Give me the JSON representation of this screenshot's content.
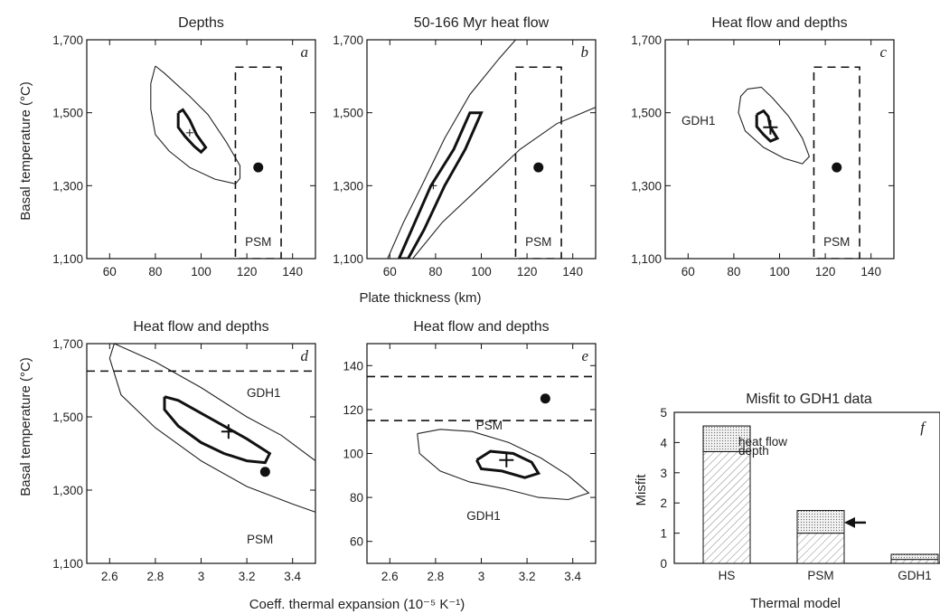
{
  "figure_labels": {
    "ylabel_top": "Basal temperature (°C)",
    "ylabel_bottom": "Basal temperature (°C)",
    "xlabel_top": "Plate thickness (km)",
    "xlabel_bottom_left": "Coeff. thermal expansion (10⁻⁵ K⁻¹)",
    "ylabel_f": "Misfit",
    "xlabel_f": "Thermal model"
  },
  "chart_data": [
    {
      "panel": "a",
      "type": "scatter",
      "title": "Depths",
      "xlim": [
        50,
        150
      ],
      "ylim": [
        1100,
        1700
      ],
      "xticks": [
        60,
        80,
        100,
        120,
        140
      ],
      "yticks": [
        1100,
        1300,
        1500,
        1700
      ],
      "ytick_labels": [
        "1,100",
        "1,300",
        "1,500",
        "1,700"
      ],
      "best_fit_marker": {
        "x": 95,
        "y": 1445
      },
      "psm_point": {
        "x": 125,
        "y": 1350
      },
      "psm_box": {
        "x": [
          115,
          135
        ],
        "y": [
          1100,
          1625
        ]
      },
      "psm_label": "PSM",
      "inner_contour": [
        [
          90,
          1500
        ],
        [
          92,
          1508
        ],
        [
          95,
          1480
        ],
        [
          98,
          1440
        ],
        [
          102,
          1405
        ],
        [
          100,
          1392
        ],
        [
          97,
          1408
        ],
        [
          93,
          1435
        ],
        [
          90,
          1460
        ],
        [
          90,
          1500
        ]
      ],
      "outer_contour": [
        [
          80,
          1628
        ],
        [
          84,
          1608
        ],
        [
          95,
          1545
        ],
        [
          103,
          1495
        ],
        [
          111,
          1420
        ],
        [
          117,
          1355
        ],
        [
          117,
          1320
        ],
        [
          115,
          1305
        ],
        [
          106,
          1318
        ],
        [
          95,
          1350
        ],
        [
          86,
          1395
        ],
        [
          80,
          1440
        ],
        [
          78,
          1510
        ],
        [
          78,
          1580
        ],
        [
          80,
          1628
        ]
      ]
    },
    {
      "panel": "b",
      "type": "scatter",
      "title": "50-166 Myr heat flow",
      "xlim": [
        50,
        150
      ],
      "ylim": [
        1100,
        1700
      ],
      "xticks": [
        60,
        80,
        100,
        120,
        140
      ],
      "yticks": [
        1100,
        1300,
        1500,
        1700
      ],
      "ytick_labels": [
        "1,100",
        "1,300",
        "1,500",
        "1,700"
      ],
      "best_fit_marker": {
        "x": 79,
        "y": 1300
      },
      "psm_point": {
        "x": 125,
        "y": 1350
      },
      "psm_box": {
        "x": [
          115,
          135
        ],
        "y": [
          1100,
          1625
        ]
      },
      "psm_label": "PSM",
      "thick_band": [
        [
          64,
          1100
        ],
        [
          71,
          1200
        ],
        [
          78,
          1300
        ],
        [
          88,
          1400
        ],
        [
          95,
          1500
        ],
        [
          100,
          1500
        ],
        [
          93,
          1400
        ],
        [
          84,
          1300
        ],
        [
          75,
          1180
        ],
        [
          68,
          1100
        ],
        [
          64,
          1100
        ]
      ],
      "upper_curve": [
        [
          59,
          1100
        ],
        [
          66,
          1200
        ],
        [
          74,
          1300
        ],
        [
          84,
          1430
        ],
        [
          95,
          1550
        ],
        [
          108,
          1650
        ],
        [
          115,
          1700
        ]
      ],
      "lower_curve": [
        [
          70,
          1100
        ],
        [
          83,
          1200
        ],
        [
          100,
          1300
        ],
        [
          117,
          1400
        ],
        [
          133,
          1470
        ],
        [
          150,
          1515
        ]
      ]
    },
    {
      "panel": "c",
      "type": "scatter",
      "title": "Heat flow and depths",
      "xlim": [
        50,
        150
      ],
      "ylim": [
        1100,
        1700
      ],
      "xticks": [
        60,
        80,
        100,
        120,
        140
      ],
      "yticks": [
        1100,
        1300,
        1500,
        1700
      ],
      "ytick_labels": [
        "1,100",
        "1,300",
        "1,500",
        "1,700"
      ],
      "best_fit_marker": {
        "x": 96,
        "y": 1460
      },
      "psm_point": {
        "x": 125,
        "y": 1350
      },
      "psm_box": {
        "x": [
          115,
          135
        ],
        "y": [
          1100,
          1625
        ]
      },
      "psm_label": "PSM",
      "gdh1_label": "GDH1",
      "inner_contour": [
        [
          90,
          1495
        ],
        [
          93,
          1505
        ],
        [
          95,
          1490
        ],
        [
          96,
          1460
        ],
        [
          99,
          1430
        ],
        [
          96,
          1422
        ],
        [
          93,
          1440
        ],
        [
          90,
          1462
        ],
        [
          90,
          1495
        ]
      ],
      "outer_contour": [
        [
          86,
          1565
        ],
        [
          92,
          1570
        ],
        [
          97,
          1540
        ],
        [
          104,
          1490
        ],
        [
          110,
          1430
        ],
        [
          113,
          1380
        ],
        [
          110,
          1360
        ],
        [
          102,
          1375
        ],
        [
          93,
          1405
        ],
        [
          85,
          1450
        ],
        [
          82,
          1500
        ],
        [
          83,
          1545
        ],
        [
          86,
          1565
        ]
      ]
    },
    {
      "panel": "d",
      "type": "scatter",
      "title": "Heat flow and depths",
      "xlim": [
        2.5,
        3.5
      ],
      "ylim": [
        1100,
        1700
      ],
      "xticks": [
        2.6,
        2.8,
        3.0,
        3.2,
        3.4
      ],
      "yticks": [
        1100,
        1300,
        1500,
        1700
      ],
      "ytick_labels": [
        "1,100",
        "1,300",
        "1,500",
        "1,700"
      ],
      "best_fit_marker": {
        "x": 3.12,
        "y": 1460
      },
      "psm_point": {
        "x": 3.28,
        "y": 1350
      },
      "gdh1_hline": 1625,
      "gdh1_label": "GDH1",
      "psm_label": "PSM",
      "inner_contour": [
        [
          2.84,
          1555
        ],
        [
          2.9,
          1545
        ],
        [
          3.0,
          1510
        ],
        [
          3.1,
          1475
        ],
        [
          3.2,
          1440
        ],
        [
          3.3,
          1400
        ],
        [
          3.28,
          1375
        ],
        [
          3.2,
          1380
        ],
        [
          3.1,
          1400
        ],
        [
          3.0,
          1430
        ],
        [
          2.9,
          1475
        ],
        [
          2.84,
          1520
        ],
        [
          2.84,
          1555
        ]
      ],
      "outer_contour": [
        [
          2.62,
          1700
        ],
        [
          2.8,
          1650
        ],
        [
          3.0,
          1580
        ],
        [
          3.2,
          1500
        ],
        [
          3.35,
          1450
        ],
        [
          3.5,
          1380
        ],
        [
          3.5,
          1240
        ],
        [
          3.4,
          1262
        ],
        [
          3.2,
          1310
        ],
        [
          3.0,
          1380
        ],
        [
          2.8,
          1470
        ],
        [
          2.65,
          1560
        ],
        [
          2.6,
          1660
        ],
        [
          2.62,
          1700
        ]
      ]
    },
    {
      "panel": "e",
      "type": "scatter",
      "title": "Heat flow and depths",
      "xlim": [
        2.5,
        3.5
      ],
      "ylim": [
        50,
        150
      ],
      "xticks": [
        2.6,
        2.8,
        3.0,
        3.2,
        3.4
      ],
      "yticks": [
        60,
        80,
        100,
        120,
        140
      ],
      "ytick_labels": [
        "60",
        "80",
        "100",
        "120",
        "140"
      ],
      "best_fit_marker": {
        "x": 3.11,
        "y": 97
      },
      "psm_point": {
        "x": 3.28,
        "y": 125
      },
      "psm_hlines": [
        135,
        115
      ],
      "psm_label": "PSM",
      "gdh1_label": "GDH1",
      "inner_contour": [
        [
          2.98,
          97
        ],
        [
          3.04,
          101
        ],
        [
          3.14,
          100
        ],
        [
          3.22,
          96
        ],
        [
          3.25,
          91
        ],
        [
          3.19,
          89
        ],
        [
          3.09,
          92
        ],
        [
          3.0,
          93
        ],
        [
          2.98,
          97
        ]
      ],
      "outer_contour": [
        [
          2.72,
          109
        ],
        [
          2.82,
          111
        ],
        [
          2.96,
          110
        ],
        [
          3.12,
          105
        ],
        [
          3.26,
          98
        ],
        [
          3.38,
          90
        ],
        [
          3.47,
          82
        ],
        [
          3.38,
          79
        ],
        [
          3.25,
          80
        ],
        [
          3.1,
          84
        ],
        [
          2.95,
          87
        ],
        [
          2.82,
          92
        ],
        [
          2.73,
          100
        ],
        [
          2.72,
          109
        ]
      ]
    },
    {
      "panel": "f",
      "type": "bar",
      "title": "Misfit to GDH1 data",
      "categories": [
        "HS",
        "PSM",
        "GDH1"
      ],
      "series": [
        {
          "name": "depth",
          "values": [
            3.7,
            1.0,
            0.13
          ]
        },
        {
          "name": "heat flow",
          "values": [
            0.85,
            0.75,
            0.17
          ]
        }
      ],
      "ylim": [
        0,
        5
      ],
      "yticks": [
        0,
        1,
        2,
        3,
        4,
        5
      ],
      "ytick_labels": [
        "0",
        "1",
        "2",
        "3",
        "4",
        "5"
      ],
      "arrow_at": {
        "category": "PSM",
        "y": 1.35
      }
    }
  ]
}
